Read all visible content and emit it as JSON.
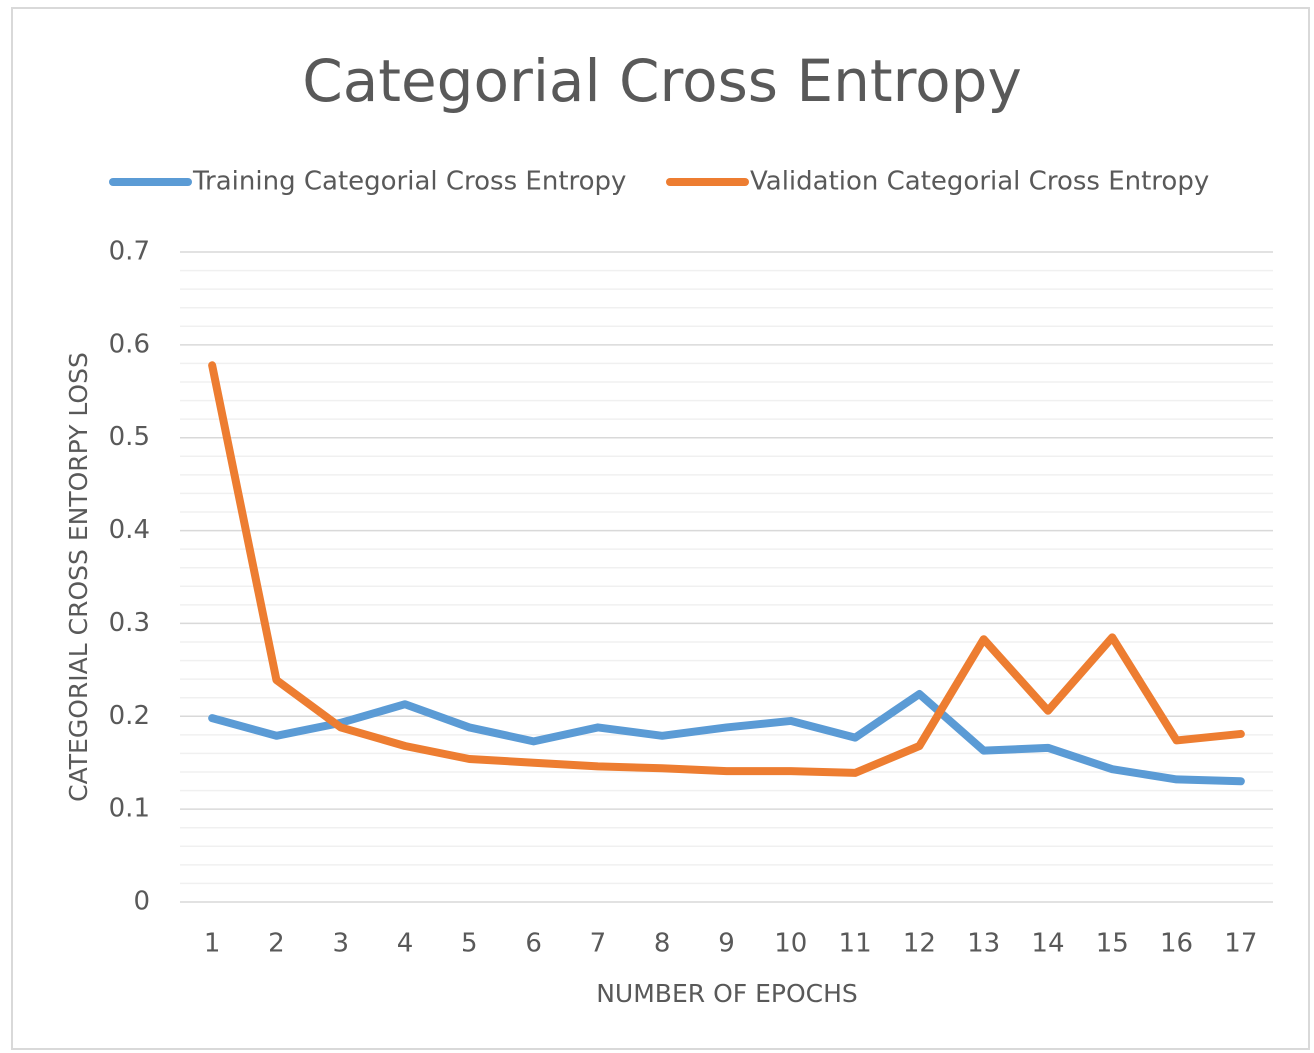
{
  "chart_data": {
    "type": "line",
    "title": "Categorial Cross Entropy",
    "x_label": "NUMBER OF EPOCHS",
    "y_label": "CATEGORIAL CROSS ENTORPY LOSS",
    "categories": [
      "1",
      "2",
      "3",
      "4",
      "5",
      "6",
      "7",
      "8",
      "9",
      "10",
      "11",
      "12",
      "13",
      "14",
      "15",
      "16",
      "17"
    ],
    "series": [
      {
        "name": "Training Categorial Cross Entropy",
        "color": "#5b9bd5",
        "values": [
          0.198,
          0.179,
          0.193,
          0.213,
          0.188,
          0.173,
          0.188,
          0.179,
          0.188,
          0.195,
          0.177,
          0.224,
          0.163,
          0.166,
          0.143,
          0.132,
          0.13
        ]
      },
      {
        "name": "Validation Categorial Cross Entropy",
        "color": "#ed7d31",
        "values": [
          0.578,
          0.239,
          0.188,
          0.168,
          0.154,
          0.15,
          0.146,
          0.144,
          0.141,
          0.141,
          0.139,
          0.168,
          0.283,
          0.206,
          0.285,
          0.174,
          0.181
        ]
      }
    ],
    "ylim": [
      0,
      0.7
    ],
    "yticks": [
      0,
      0.1,
      0.2,
      0.3,
      0.4,
      0.5,
      0.6,
      0.7
    ],
    "grid": true,
    "minor_grid": true,
    "legend": "top"
  }
}
